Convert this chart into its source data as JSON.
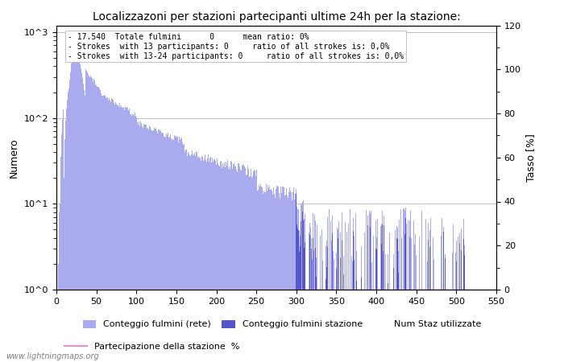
{
  "title": "Localizzazoni per stazioni partecipanti ultime 24h per la stazione:",
  "ylabel_left": "Numero",
  "ylabel_right": "Tasso [%]",
  "xlim": [
    0,
    550
  ],
  "ylim_right": [
    0,
    120
  ],
  "xticks": [
    0,
    50,
    100,
    150,
    200,
    250,
    300,
    350,
    400,
    450,
    500,
    550
  ],
  "yticks_right": [
    0,
    20,
    40,
    60,
    80,
    100,
    120
  ],
  "info_text": "- 17.540  Totale fulmini      0      mean ratio: 0%\n- Strokes  with 13 participants: 0     ratio of all strokes is: 0,0%\n- Strokes  with 13-24 participants: 0     ratio of all strokes is: 0,0%",
  "bar_color_light": "#aaaaee",
  "bar_color_dark": "#5555cc",
  "line_color": "#ff88cc",
  "watermark": "www.lightningmaps.org",
  "legend1": "Conteggio fulmini (rete)",
  "legend2": "Conteggio fulmini stazione",
  "legend3": "Num Staz utilizzate",
  "legend4": "Partecipazione della stazione  %",
  "grid_color": "#aaaaaa",
  "title_fontsize": 10,
  "axis_fontsize": 8,
  "label_fontsize": 9,
  "info_fontsize": 7,
  "watermark_fontsize": 7
}
